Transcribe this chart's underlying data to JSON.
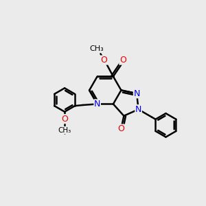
{
  "background_color": "#ebebeb",
  "bond_color": "#000000",
  "bond_width": 1.8,
  "atom_colors": {
    "N": "#0000ee",
    "O": "#ee0000",
    "C": "#000000"
  },
  "font_size": 9.0,
  "font_size_small": 8.0
}
